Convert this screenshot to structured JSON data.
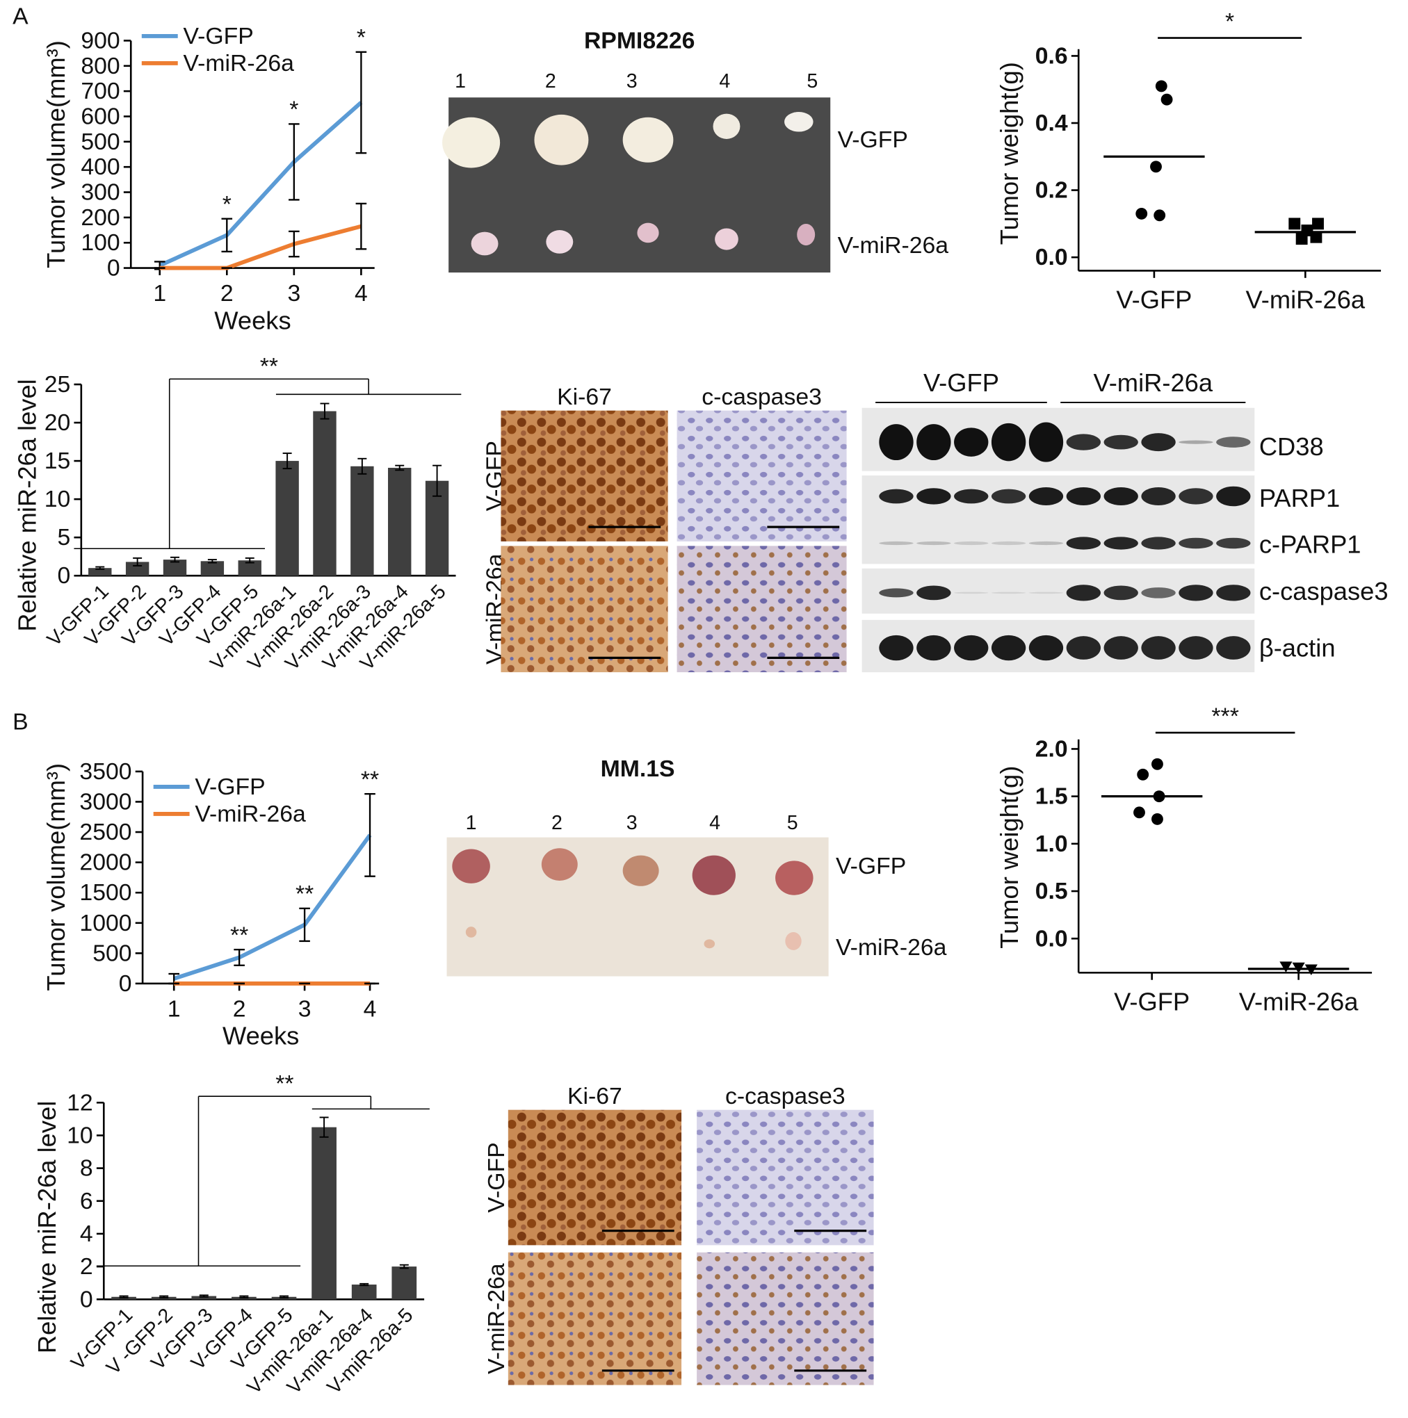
{
  "panel_labels": [
    "A",
    "B"
  ],
  "chart_data": [
    {
      "type": "line",
      "ylabel": "Tumor volume(mm³)",
      "xlabel": "Weeks",
      "x": [
        1,
        2,
        3,
        4
      ],
      "xlim": [
        0.57,
        4.2
      ],
      "xticks": [
        1,
        2,
        3,
        4
      ],
      "ylim": [
        0,
        900
      ],
      "yticks": [
        0,
        100,
        200,
        300,
        400,
        500,
        600,
        700,
        800,
        900
      ],
      "legend": "upper left",
      "series": [
        {
          "name": "V-GFP",
          "color": "#5b9bd5",
          "values": [
            10,
            130,
            420,
            655
          ],
          "errors": [
            15,
            65,
            150,
            200
          ]
        },
        {
          "name": "V-miR-26a",
          "color": "#ed7d31",
          "values": [
            0,
            0,
            95,
            165
          ],
          "errors": [
            0,
            0,
            50,
            90
          ]
        }
      ],
      "annotations": [
        null,
        "*",
        "*",
        "*"
      ]
    },
    {
      "type": "scatter",
      "ylabel": "Tumor weight(g)",
      "categories": [
        "V-GFP",
        "V-miR-26a"
      ],
      "ylim": [
        -0.04,
        0.62
      ],
      "yticks": [
        {
          "value": 0,
          "label": "0.0"
        },
        0.2,
        0.4,
        0.6
      ],
      "values": [
        [
          0.51,
          0.47,
          0.27,
          0.13,
          0.125
        ],
        [
          0.1,
          0.1,
          0.08,
          0.06,
          0.055
        ]
      ],
      "means": [
        0.3,
        0.075
      ],
      "markers": [
        "circle",
        "square"
      ],
      "color": "#000000",
      "annotation": "*"
    },
    {
      "type": "bar",
      "ylabel": "Relative miR-26a level",
      "categories": [
        "V-GFP-1",
        "V-GFP-2",
        "V-GFP-3",
        "V-GFP-4",
        "V-GFP-5",
        "V-miR-26a-1",
        "V-miR-26a-2",
        "V-miR-26a-3",
        "V-miR-26a-4",
        "V-miR-26a-5"
      ],
      "values": [
        1,
        1.8,
        2.1,
        1.9,
        2,
        15,
        21.5,
        14.3,
        14.1,
        12.4
      ],
      "errors": [
        0.15,
        0.5,
        0.3,
        0.2,
        0.3,
        1,
        1,
        1,
        0.3,
        2
      ],
      "ylim": [
        0,
        25
      ],
      "yticks": [
        0,
        5,
        10,
        15,
        20,
        25
      ],
      "color": "#3f3f3f",
      "annotation": "**"
    },
    {
      "type": "line",
      "ylabel": "Tumor volume(mm³)",
      "xlabel": "Weeks",
      "x": [
        1,
        2,
        3,
        4
      ],
      "xlim": [
        0.52,
        4.14
      ],
      "xticks": [
        1,
        2,
        3,
        4
      ],
      "ylim": [
        0,
        3500
      ],
      "yticks": [
        0,
        500,
        1000,
        1500,
        2000,
        2500,
        3000,
        3500
      ],
      "legend": "upper left",
      "series": [
        {
          "name": "V-GFP",
          "color": "#5b9bd5",
          "values": [
            80,
            430,
            970,
            2450
          ],
          "errors": [
            80,
            130,
            270,
            680
          ]
        },
        {
          "name": "V-miR-26a",
          "color": "#ed7d31",
          "values": [
            0,
            0,
            0,
            0
          ],
          "errors": [
            0,
            0,
            0,
            0
          ]
        }
      ],
      "annotations": [
        null,
        "**",
        "**",
        "**"
      ]
    },
    {
      "type": "scatter",
      "ylabel": "Tumor weight(g)",
      "categories": [
        "V-GFP",
        "V-miR-26a"
      ],
      "ylim": [
        -0.36,
        2.1
      ],
      "yticks": [
        {
          "value": 0,
          "label": "0.0"
        },
        0.5,
        {
          "value": 1,
          "label": "1.0"
        },
        1.5,
        {
          "value": 2,
          "label": "2.0"
        }
      ],
      "values": [
        [
          1.84,
          1.73,
          1.5,
          1.33,
          1.26
        ],
        [
          -0.3,
          -0.31,
          -0.33
        ]
      ],
      "means": [
        1.5,
        -0.32
      ],
      "markers": [
        "circle",
        "triangle"
      ],
      "color": "#000000",
      "annotation": "***"
    },
    {
      "type": "bar",
      "ylabel": "Relative miR-26a level",
      "categories": [
        "V-GFP-1",
        "V -GFP-2",
        "V-GFP-3",
        "V-GFP-4",
        "V-GFP-5",
        "V-miR-26a-1",
        "V-miR-26a-4",
        "V-miR-26a-5"
      ],
      "values": [
        0.15,
        0.15,
        0.2,
        0.15,
        0.15,
        10.5,
        0.9,
        2
      ],
      "errors": [
        0.05,
        0.05,
        0.05,
        0.05,
        0.05,
        0.6,
        0.05,
        0.1
      ],
      "ylim": [
        0,
        12
      ],
      "yticks": [
        0,
        2,
        4,
        6,
        8,
        10,
        12
      ],
      "color": "#3f3f3f",
      "annotation": "**"
    }
  ],
  "photos": [
    {
      "title": "RPMI8226",
      "lanes": [
        "1",
        "2",
        "3",
        "4",
        "5"
      ],
      "rows": [
        "V-GFP",
        "V-miR-26a"
      ]
    },
    {
      "title": "MM.1S",
      "lanes": [
        "1",
        "2",
        "3",
        "4",
        "5"
      ],
      "rows": [
        "V-GFP",
        "V-miR-26a"
      ]
    }
  ],
  "ihc": [
    {
      "columns": [
        "Ki-67",
        "c-caspase3"
      ],
      "rows": [
        "V-GFP",
        "V-miR-26a"
      ]
    },
    {
      "columns": [
        "Ki-67",
        "c-caspase3"
      ],
      "rows": [
        "V-GFP",
        "V-miR-26a"
      ]
    }
  ],
  "western": {
    "groups": [
      "V-GFP",
      "V-miR-26a"
    ],
    "bands": [
      "CD38",
      "PARP1",
      "c-PARP1",
      "c-caspase3",
      "β-actin"
    ]
  }
}
